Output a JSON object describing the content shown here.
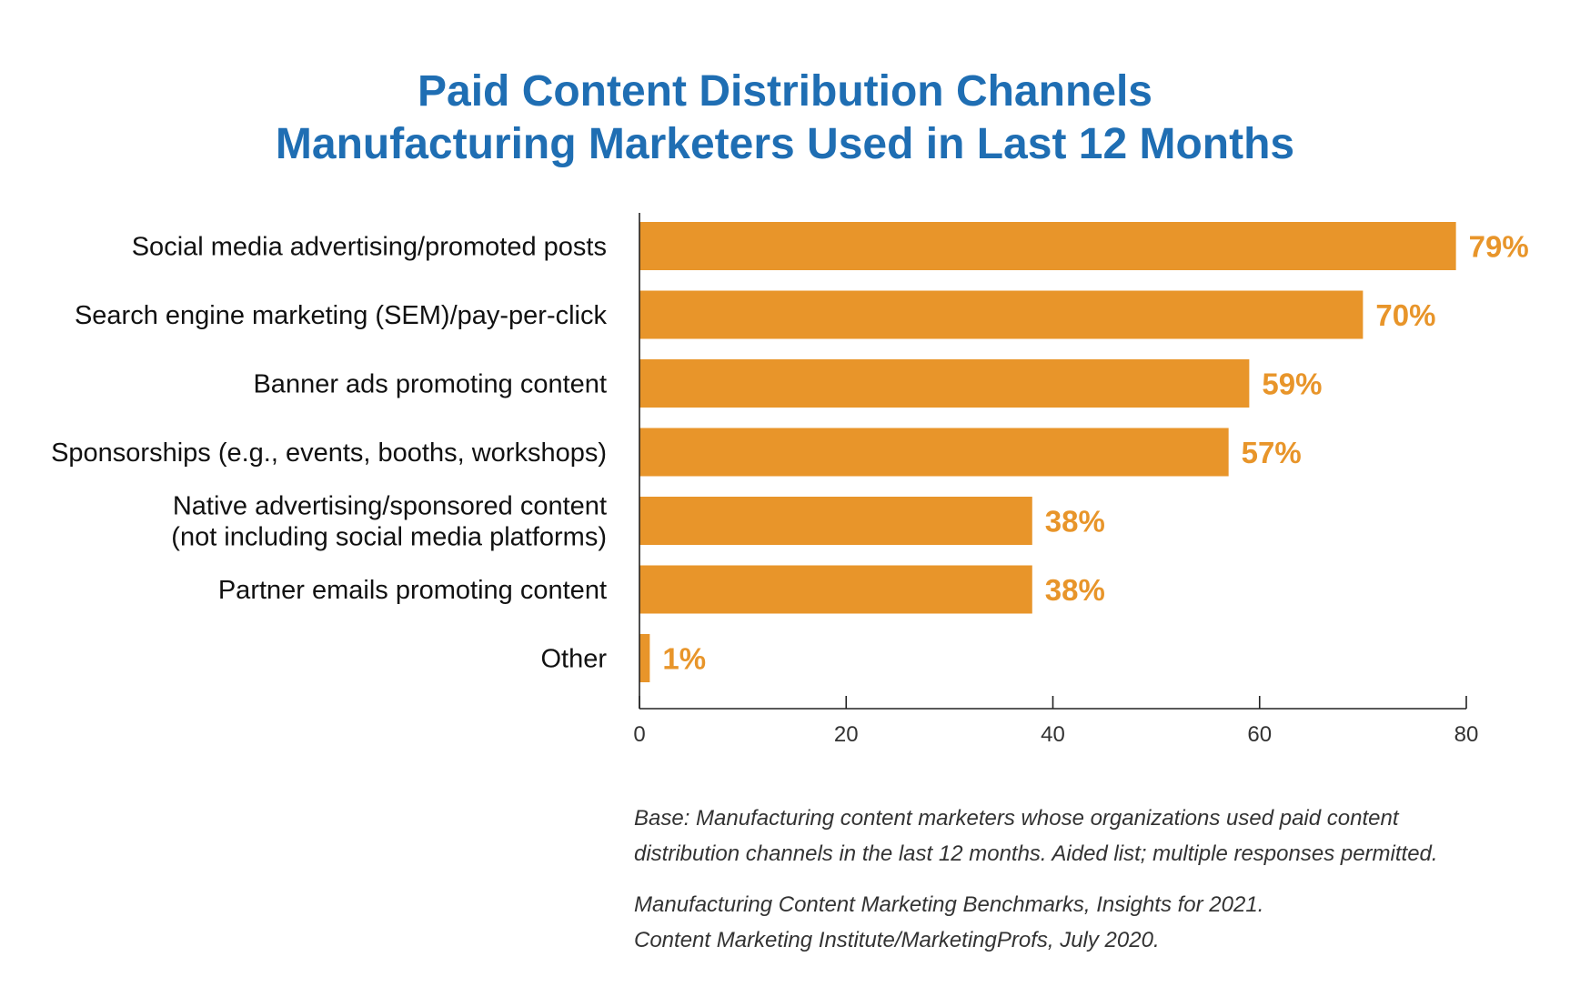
{
  "title": {
    "line1": "Paid Content Distribution Channels",
    "line2": "Manufacturing Marketers Used in Last 12 Months"
  },
  "chart_data": {
    "type": "bar",
    "orientation": "horizontal",
    "categories": [
      [
        "Social media advertising/promoted posts"
      ],
      [
        "Search engine marketing (SEM)/pay-per-click"
      ],
      [
        "Banner ads promoting content"
      ],
      [
        "Sponsorships (e.g., events, booths, workshops)"
      ],
      [
        "Native advertising/sponsored content",
        "(not including social media platforms)"
      ],
      [
        "Partner emails promoting content"
      ],
      [
        "Other"
      ]
    ],
    "values": [
      79,
      70,
      59,
      57,
      38,
      38,
      1
    ],
    "value_labels": [
      "79%",
      "70%",
      "59%",
      "57%",
      "38%",
      "38%",
      "1%"
    ],
    "xlim": [
      0,
      80
    ],
    "xticks": [
      0,
      20,
      40,
      60,
      80
    ],
    "grid": false,
    "bar_color": "#e8952a",
    "value_label_color": "#e8952a",
    "title_color": "#1f6eb3"
  },
  "footnote": {
    "base_line1": "Base: Manufacturing content marketers whose organizations used paid content",
    "base_line2": "distribution channels in the last 12 months. Aided list; multiple responses permitted.",
    "source_line1": "Manufacturing Content Marketing Benchmarks, Insights for 2021.",
    "source_line2": "Content Marketing Institute/MarketingProfs, July 2020."
  }
}
